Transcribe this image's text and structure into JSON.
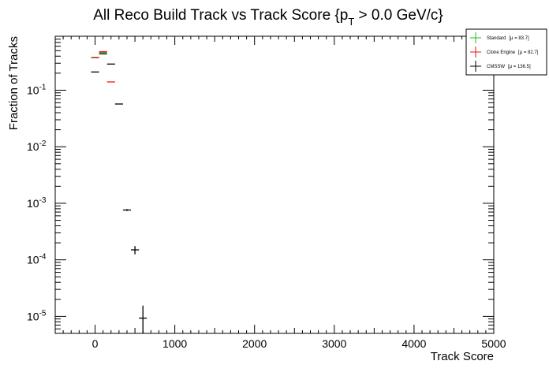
{
  "chart_data": {
    "type": "scatter",
    "title_main": "All Reco Build Track vs Track Score {p",
    "title_sub": "T",
    "title_tail": " > 0.0 GeV/c}",
    "xlabel": "Track Score",
    "ylabel": "Fraction of Tracks",
    "xlim": [
      -500,
      5000
    ],
    "ylim": [
      5e-06,
      0.9
    ],
    "yscale": "log",
    "grid": false,
    "legend_position": "top-right",
    "bin_width": 100,
    "x_ticks": [
      {
        "value": 0,
        "label": "0"
      },
      {
        "value": 1000,
        "label": "1000"
      },
      {
        "value": 2000,
        "label": "2000"
      },
      {
        "value": 3000,
        "label": "3000"
      },
      {
        "value": 4000,
        "label": "4000"
      },
      {
        "value": 5000,
        "label": "5000"
      }
    ],
    "y_ticks": [
      {
        "value": 0.1,
        "base": "10",
        "exp": "-1"
      },
      {
        "value": 0.01,
        "base": "10",
        "exp": "-2"
      },
      {
        "value": 0.001,
        "base": "10",
        "exp": "-3"
      },
      {
        "value": 0.0001,
        "base": "10",
        "exp": "-4"
      },
      {
        "value": 1e-05,
        "base": "10",
        "exp": "-5"
      }
    ],
    "series": [
      {
        "name": "Standard",
        "mean_label": "[μ = 83.7]",
        "color": "#22bb22",
        "points": [
          {
            "x": 0,
            "y": 0.375,
            "err": 0
          },
          {
            "x": 100,
            "y": 0.465,
            "err": 0
          }
        ]
      },
      {
        "name": "Clone Engine",
        "mean_label": "[μ = 82.7]",
        "color": "#ee1111",
        "points": [
          {
            "x": 0,
            "y": 0.38,
            "err": 0
          },
          {
            "x": 100,
            "y": 0.48,
            "err": 0
          },
          {
            "x": 200,
            "y": 0.14,
            "err": 0
          }
        ]
      },
      {
        "name": "CMSSW",
        "mean_label": "[μ = 136.5]",
        "color": "#000000",
        "points": [
          {
            "x": 0,
            "y": 0.21,
            "err": 0
          },
          {
            "x": 100,
            "y": 0.44,
            "err": 0
          },
          {
            "x": 200,
            "y": 0.29,
            "err": 0
          },
          {
            "x": 300,
            "y": 0.057,
            "err": 0
          },
          {
            "x": 400,
            "y": 0.00076,
            "err": 3e-05
          },
          {
            "x": 500,
            "y": 0.00015,
            "err": 2.5e-05
          },
          {
            "x": 600,
            "y": 9.3e-06,
            "err": 6.2e-06
          }
        ]
      }
    ]
  }
}
